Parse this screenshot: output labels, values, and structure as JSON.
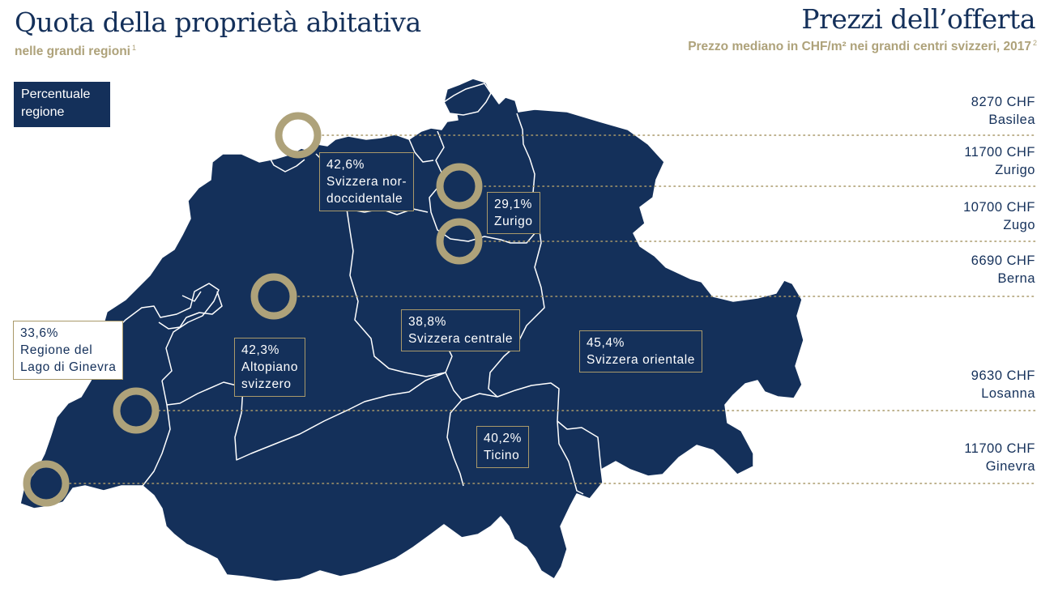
{
  "header": {
    "title_left": "Quota della proprietà abitativa",
    "subtitle_left": "nelle grandi regioni",
    "subtitle_left_fn": "1",
    "title_right": "Prezzi dell’offerta",
    "subtitle_right": "Prezzo mediano in CHF/m² nei grandi centri svizzeri, 2017",
    "subtitle_right_fn": "2"
  },
  "legend": {
    "line1": "Percentuale",
    "line2": "regione"
  },
  "regions": {
    "nordoccidentale": {
      "value": "42,6%",
      "line1": "Svizzera nor-",
      "line2": "doccidentale"
    },
    "zurigo": {
      "value": "29,1%",
      "line1": "Zurigo"
    },
    "centrale": {
      "value": "38,8%",
      "line1": "Svizzera centrale"
    },
    "orientale": {
      "value": "45,4%",
      "line1": "Svizzera orientale"
    },
    "lago_ginevra": {
      "value": "33,6%",
      "line1": "Regione del",
      "line2": "Lago di Ginevra"
    },
    "altopiano": {
      "value": "42,3%",
      "line1": "Altopiano",
      "line2": "svizzero"
    },
    "ticino": {
      "value": "40,2%",
      "line1": "Ticino"
    }
  },
  "prices": [
    {
      "value": "8270 CHF",
      "city": "Basilea"
    },
    {
      "value": "11700 CHF",
      "city": "Zurigo"
    },
    {
      "value": "10700 CHF",
      "city": "Zugo"
    },
    {
      "value": "6690 CHF",
      "city": "Berna"
    },
    {
      "value": "9630 CHF",
      "city": "Losanna"
    },
    {
      "value": "11700 CHF",
      "city": "Ginevra"
    }
  ],
  "colors": {
    "map_fill": "#14305a",
    "accent_gold": "#aea27a",
    "border_white": "#ffffff"
  }
}
